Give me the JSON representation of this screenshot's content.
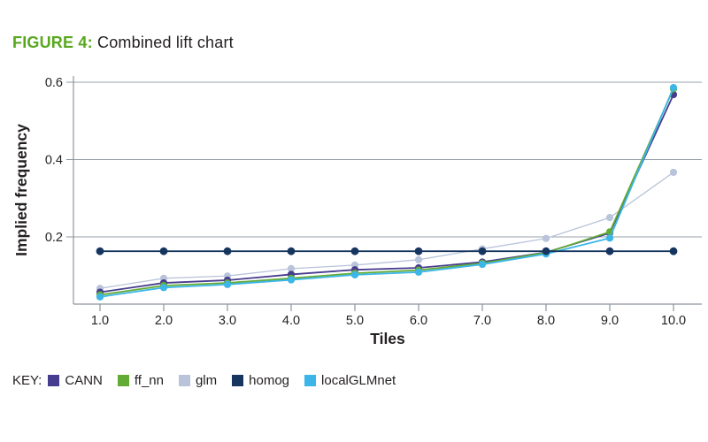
{
  "figure": {
    "label": "FIGURE 4:",
    "title": " Combined lift chart"
  },
  "key_label": "KEY:",
  "colors": {
    "figure_label_green": "#58a81e",
    "text": "#231f20",
    "grid": "#97a0ab",
    "axis": "#8d959f"
  },
  "chart_data": {
    "type": "line",
    "title": "Combined lift chart",
    "xlabel": "Tiles",
    "ylabel": "Implied frequency",
    "x": [
      1,
      2,
      3,
      4,
      5,
      6,
      7,
      8,
      9,
      10
    ],
    "x_tick_labels": [
      "1.0",
      "2.0",
      "3.0",
      "4.0",
      "5.0",
      "6.0",
      "7.0",
      "8.0",
      "9.0",
      "10.0"
    ],
    "y_ticks": [
      0.2,
      0.4,
      0.6
    ],
    "y_tick_labels": [
      "0.2",
      "0.4",
      "0.6"
    ],
    "ylim": [
      0.025,
      0.62
    ],
    "grid": "horizontal-only",
    "legend_position": "bottom-left",
    "marker": "circle",
    "series": [
      {
        "name": "CANN",
        "color": "#473d8f",
        "values": [
          0.057,
          0.081,
          0.088,
          0.103,
          0.115,
          0.12,
          0.135,
          0.16,
          0.21,
          0.568
        ]
      },
      {
        "name": "ff_nn",
        "color": "#62ab34",
        "values": [
          0.05,
          0.074,
          0.081,
          0.093,
          0.106,
          0.114,
          0.132,
          0.159,
          0.213,
          0.583
        ]
      },
      {
        "name": "glm",
        "color": "#b9c4da",
        "values": [
          0.067,
          0.093,
          0.099,
          0.118,
          0.127,
          0.141,
          0.169,
          0.196,
          0.25,
          0.367
        ]
      },
      {
        "name": "homog",
        "color": "#16365f",
        "values": [
          0.163,
          0.163,
          0.163,
          0.163,
          0.163,
          0.163,
          0.163,
          0.163,
          0.163,
          0.163
        ]
      },
      {
        "name": "localGLMnet",
        "color": "#3cb6e8",
        "values": [
          0.045,
          0.069,
          0.077,
          0.089,
          0.102,
          0.109,
          0.129,
          0.156,
          0.197,
          0.586
        ]
      }
    ]
  }
}
